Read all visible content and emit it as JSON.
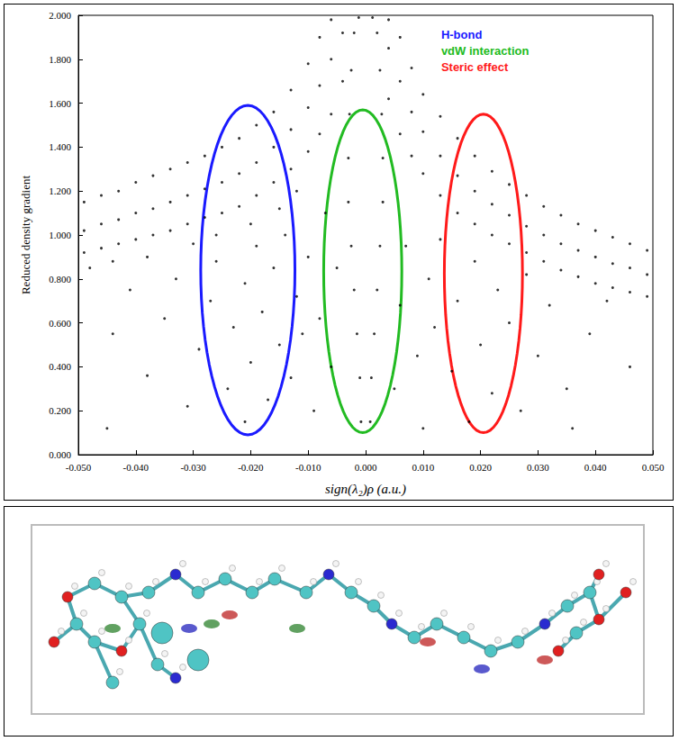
{
  "chart_data": {
    "type": "scatter",
    "xlabel": "sign(λ₂)ρ (a.u.)",
    "ylabel": "Reduced density gradient",
    "xlim": [
      -0.05,
      0.05
    ],
    "ylim": [
      0,
      2
    ],
    "xticks": [
      {
        "value": -0.05,
        "label": "-0.050"
      },
      {
        "value": -0.04,
        "label": "-0.040"
      },
      {
        "value": -0.03,
        "label": "-0.030"
      },
      {
        "value": -0.02,
        "label": "-0.020"
      },
      {
        "value": -0.01,
        "label": "-0.010"
      },
      {
        "value": 0,
        "label": "0.000"
      },
      {
        "value": 0.01,
        "label": "0.010"
      },
      {
        "value": 0.02,
        "label": "0.020"
      },
      {
        "value": 0.03,
        "label": "0.030"
      },
      {
        "value": 0.04,
        "label": "0.040"
      },
      {
        "value": 0.05,
        "label": "0.050"
      }
    ],
    "yticks": [
      {
        "value": 0,
        "label": "0.000"
      },
      {
        "value": 0.2,
        "label": "0.200"
      },
      {
        "value": 0.4,
        "label": "0.400"
      },
      {
        "value": 0.6,
        "label": "0.600"
      },
      {
        "value": 0.8,
        "label": "0.800"
      },
      {
        "value": 1.0,
        "label": "1.000"
      },
      {
        "value": 1.2,
        "label": "1.200"
      },
      {
        "value": 1.4,
        "label": "1.400"
      },
      {
        "value": 1.6,
        "label": "1.600"
      },
      {
        "value": 1.8,
        "label": "1.800"
      },
      {
        "value": 2.0,
        "label": "2.000"
      }
    ],
    "grid": false,
    "legend": "upper right",
    "regions": [
      {
        "label": "H-bond",
        "color": "#1a1aff",
        "x": [
          -0.0287,
          -0.0123
        ],
        "y": [
          0.09,
          1.59
        ]
      },
      {
        "label": "vdW interaction",
        "color": "#22bb22",
        "x": [
          -0.0073,
          0.0063
        ],
        "y": [
          0.1,
          1.57
        ]
      },
      {
        "label": "Steric effect",
        "color": "#ff1a1a",
        "x": [
          0.0137,
          0.0273
        ],
        "y": [
          0.1,
          1.55
        ]
      }
    ],
    "series": [
      {
        "color": "#000000",
        "marker": "dot",
        "points": [
          [
            -0.049,
            0.92
          ],
          [
            -0.049,
            1.02
          ],
          [
            -0.049,
            1.15
          ],
          [
            -0.046,
            0.94
          ],
          [
            -0.046,
            1.05
          ],
          [
            -0.046,
            1.18
          ],
          [
            -0.043,
            0.96
          ],
          [
            -0.043,
            1.07
          ],
          [
            -0.043,
            1.2
          ],
          [
            -0.04,
            0.98
          ],
          [
            -0.04,
            1.1
          ],
          [
            -0.04,
            1.24
          ],
          [
            -0.037,
            1.0
          ],
          [
            -0.037,
            1.12
          ],
          [
            -0.037,
            1.27
          ],
          [
            -0.034,
            1.02
          ],
          [
            -0.034,
            1.15
          ],
          [
            -0.034,
            1.3
          ],
          [
            -0.031,
            1.05
          ],
          [
            -0.031,
            1.18
          ],
          [
            -0.031,
            1.33
          ],
          [
            -0.028,
            1.08
          ],
          [
            -0.028,
            1.21
          ],
          [
            -0.028,
            1.36
          ],
          [
            -0.025,
            1.1
          ],
          [
            -0.025,
            1.24
          ],
          [
            -0.025,
            1.4
          ],
          [
            -0.022,
            1.13
          ],
          [
            -0.022,
            1.28
          ],
          [
            -0.022,
            1.44
          ],
          [
            -0.019,
            1.18
          ],
          [
            -0.019,
            1.33
          ],
          [
            -0.019,
            1.5
          ],
          [
            -0.016,
            1.24
          ],
          [
            -0.016,
            1.4
          ],
          [
            -0.016,
            1.56
          ],
          [
            -0.013,
            1.3
          ],
          [
            -0.013,
            1.48
          ],
          [
            -0.013,
            1.66
          ],
          [
            -0.01,
            1.38
          ],
          [
            -0.01,
            1.58
          ],
          [
            -0.01,
            1.78
          ],
          [
            -0.008,
            1.46
          ],
          [
            -0.008,
            1.68
          ],
          [
            -0.008,
            1.9
          ],
          [
            -0.006,
            1.55
          ],
          [
            -0.006,
            1.8
          ],
          [
            -0.006,
            1.98
          ],
          [
            -0.004,
            1.7
          ],
          [
            -0.004,
            1.92
          ],
          [
            -0.048,
            0.85
          ],
          [
            -0.044,
            0.88
          ],
          [
            -0.038,
            0.9
          ],
          [
            -0.03,
            0.96
          ],
          [
            -0.026,
            1.0
          ],
          [
            -0.02,
            1.05
          ],
          [
            -0.015,
            1.12
          ],
          [
            -0.012,
            1.2
          ],
          [
            0.049,
            0.72
          ],
          [
            0.049,
            0.82
          ],
          [
            0.049,
            0.93
          ],
          [
            0.046,
            0.74
          ],
          [
            0.046,
            0.85
          ],
          [
            0.046,
            0.96
          ],
          [
            0.043,
            0.76
          ],
          [
            0.043,
            0.87
          ],
          [
            0.043,
            0.99
          ],
          [
            0.04,
            0.78
          ],
          [
            0.04,
            0.9
          ],
          [
            0.04,
            1.02
          ],
          [
            0.037,
            0.81
          ],
          [
            0.037,
            0.93
          ],
          [
            0.037,
            1.05
          ],
          [
            0.034,
            0.84
          ],
          [
            0.034,
            0.96
          ],
          [
            0.034,
            1.09
          ],
          [
            0.031,
            0.88
          ],
          [
            0.031,
            1.0
          ],
          [
            0.031,
            1.13
          ],
          [
            0.028,
            0.92
          ],
          [
            0.028,
            1.04
          ],
          [
            0.028,
            1.18
          ],
          [
            0.025,
            0.96
          ],
          [
            0.025,
            1.09
          ],
          [
            0.025,
            1.23
          ],
          [
            0.022,
            1.0
          ],
          [
            0.022,
            1.14
          ],
          [
            0.022,
            1.29
          ],
          [
            0.019,
            1.05
          ],
          [
            0.019,
            1.2
          ],
          [
            0.019,
            1.36
          ],
          [
            0.016,
            1.1
          ],
          [
            0.016,
            1.27
          ],
          [
            0.016,
            1.44
          ],
          [
            0.013,
            1.18
          ],
          [
            0.013,
            1.36
          ],
          [
            0.013,
            1.54
          ],
          [
            0.01,
            1.28
          ],
          [
            0.01,
            1.47
          ],
          [
            0.01,
            1.64
          ],
          [
            0.008,
            1.36
          ],
          [
            0.008,
            1.56
          ],
          [
            0.008,
            1.76
          ],
          [
            0.006,
            1.46
          ],
          [
            0.006,
            1.7
          ],
          [
            0.006,
            1.9
          ],
          [
            0.004,
            1.62
          ],
          [
            0.004,
            1.85
          ],
          [
            0.004,
            1.98
          ],
          [
            -0.0008,
            0.15
          ],
          [
            0.0008,
            0.15
          ],
          [
            -0.001,
            0.35
          ],
          [
            0.001,
            0.35
          ],
          [
            -0.0015,
            0.55
          ],
          [
            0.0015,
            0.55
          ],
          [
            -0.002,
            0.75
          ],
          [
            0.002,
            0.75
          ],
          [
            -0.0025,
            0.95
          ],
          [
            0.0025,
            0.95
          ],
          [
            -0.003,
            1.15
          ],
          [
            0.003,
            1.15
          ],
          [
            -0.003,
            1.35
          ],
          [
            0.003,
            1.35
          ],
          [
            -0.0028,
            1.55
          ],
          [
            0.0028,
            1.55
          ],
          [
            -0.0025,
            1.75
          ],
          [
            0.0025,
            1.75
          ],
          [
            -0.002,
            1.92
          ],
          [
            0.002,
            1.92
          ],
          [
            -0.0012,
            1.99
          ],
          [
            0.0012,
            1.99
          ],
          [
            -0.045,
            0.12
          ],
          [
            -0.044,
            0.55
          ],
          [
            -0.041,
            0.75
          ],
          [
            -0.038,
            0.36
          ],
          [
            -0.035,
            0.62
          ],
          [
            -0.033,
            0.8
          ],
          [
            -0.031,
            0.22
          ],
          [
            -0.029,
            0.48
          ],
          [
            -0.027,
            0.7
          ],
          [
            -0.026,
            0.88
          ],
          [
            -0.024,
            0.3
          ],
          [
            -0.023,
            0.58
          ],
          [
            -0.021,
            0.15
          ],
          [
            -0.021,
            0.78
          ],
          [
            -0.02,
            0.42
          ],
          [
            -0.019,
            0.95
          ],
          [
            -0.018,
            0.65
          ],
          [
            -0.017,
            0.25
          ],
          [
            -0.016,
            0.85
          ],
          [
            -0.015,
            0.5
          ],
          [
            -0.014,
            1.0
          ],
          [
            -0.013,
            0.35
          ],
          [
            -0.012,
            0.72
          ],
          [
            -0.011,
            0.55
          ],
          [
            -0.01,
            0.9
          ],
          [
            -0.009,
            0.2
          ],
          [
            -0.008,
            0.62
          ],
          [
            -0.007,
            1.1
          ],
          [
            -0.006,
            0.4
          ],
          [
            -0.005,
            0.85
          ],
          [
            0.005,
            0.3
          ],
          [
            0.006,
            0.68
          ],
          [
            0.007,
            0.95
          ],
          [
            0.009,
            0.45
          ],
          [
            0.01,
            0.12
          ],
          [
            0.011,
            0.8
          ],
          [
            0.012,
            0.58
          ],
          [
            0.013,
            0.98
          ],
          [
            0.015,
            0.38
          ],
          [
            0.016,
            0.7
          ],
          [
            0.018,
            0.15
          ],
          [
            0.019,
            0.88
          ],
          [
            0.02,
            0.5
          ],
          [
            0.022,
            0.28
          ],
          [
            0.023,
            0.75
          ],
          [
            0.025,
            0.6
          ],
          [
            0.027,
            0.2
          ],
          [
            0.028,
            0.82
          ],
          [
            0.03,
            0.45
          ],
          [
            0.032,
            0.68
          ],
          [
            0.035,
            0.3
          ],
          [
            0.036,
            0.12
          ],
          [
            0.039,
            0.55
          ],
          [
            0.042,
            0.7
          ],
          [
            0.046,
            0.4
          ]
        ]
      }
    ]
  }
}
